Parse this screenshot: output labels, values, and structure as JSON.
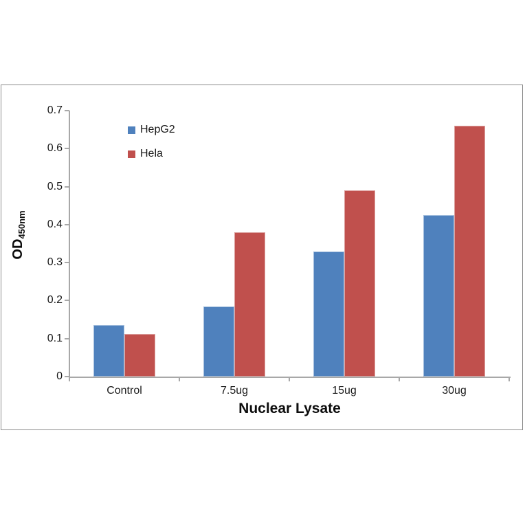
{
  "chart_data": {
    "type": "bar",
    "categories": [
      "Control",
      "7.5ug",
      "15ug",
      "30ug"
    ],
    "series": [
      {
        "name": "HepG2",
        "color": "#4F81BD",
        "edge_color": "#A3BEDD",
        "values": [
          0.135,
          0.185,
          0.33,
          0.425
        ]
      },
      {
        "name": "Hela",
        "color": "#C0504D",
        "edge_color": "#DCA09E",
        "values": [
          0.113,
          0.38,
          0.49,
          0.66
        ]
      }
    ],
    "xlabel": "Nuclear Lysate",
    "ylabel_main": "OD",
    "ylabel_sub": "450nm",
    "ylim": [
      0,
      0.7
    ],
    "yticks": [
      "0",
      "0.1",
      "0.2",
      "0.3",
      "0.4",
      "0.5",
      "0.6",
      "0.7"
    ],
    "grid": false,
    "legend_position": "top-left-inside",
    "axis_color": "#A8A8A8",
    "frame_border_color": "#8A8A8A",
    "text_color": "#1A1A1A"
  }
}
